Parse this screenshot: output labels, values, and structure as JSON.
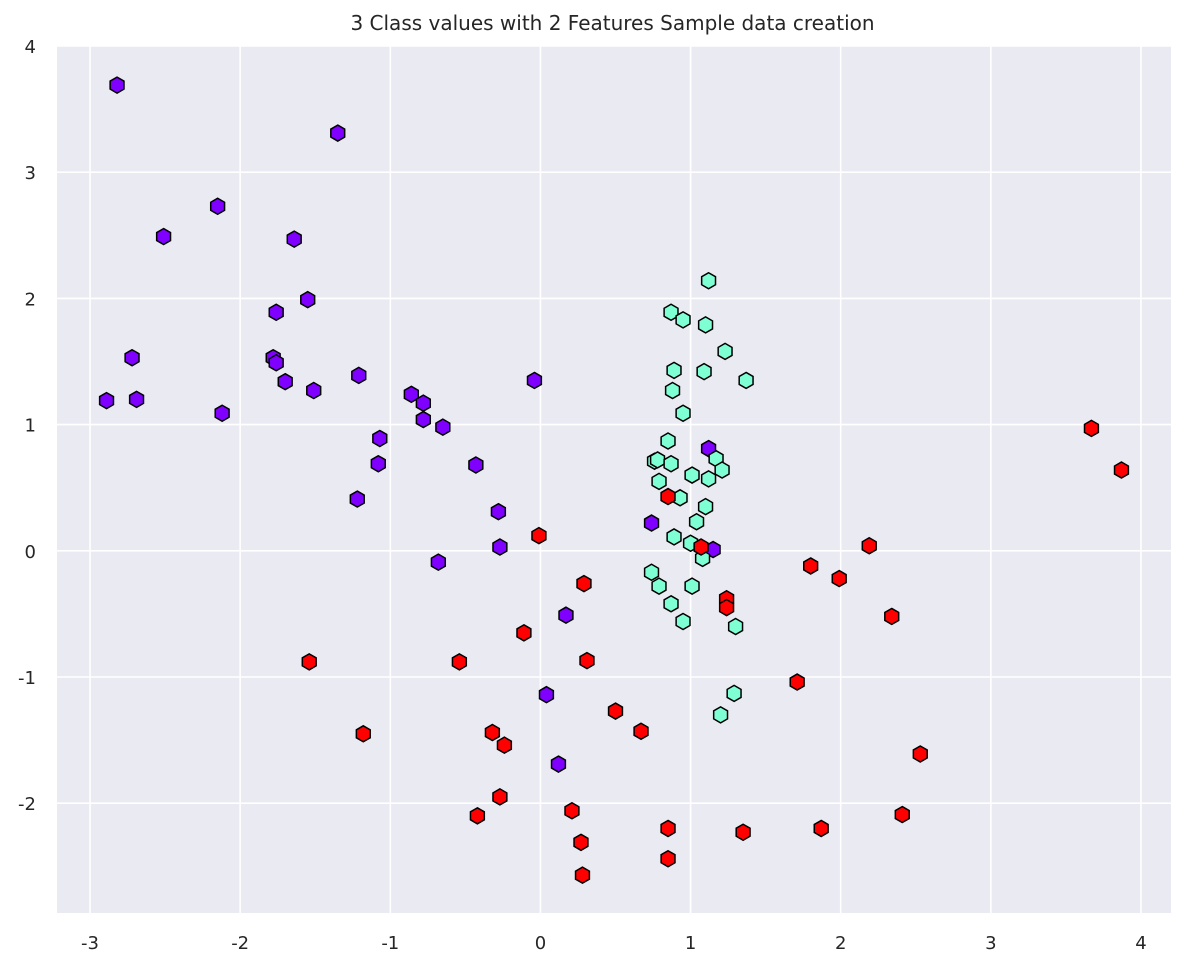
{
  "chart_data": {
    "type": "scatter",
    "title": "3 Class values with 2 Features Sample data creation",
    "xlabel": "",
    "ylabel": "",
    "xlim": [
      -3.22,
      4.2
    ],
    "ylim": [
      -2.87,
      4.0
    ],
    "xticks": [
      -3,
      -2,
      -1,
      0,
      1,
      2,
      3,
      4
    ],
    "yticks": [
      -2,
      -1,
      0,
      1,
      2,
      3,
      4
    ],
    "xtick_labels": [
      "-3",
      "-2",
      "-1",
      "0",
      "1",
      "2",
      "3",
      "4"
    ],
    "ytick_labels": [
      "-2",
      "-1",
      "0",
      "1",
      "2",
      "3",
      "4"
    ],
    "grid": true,
    "background": "#eaeaf2",
    "gridColor": "#ffffff",
    "marker": "hexagon",
    "markerEdgeColor": "#000000",
    "series": [
      {
        "color": "#7f00ff",
        "points": [
          [
            -2.82,
            3.69
          ],
          [
            -1.35,
            3.31
          ],
          [
            -2.15,
            2.73
          ],
          [
            -2.51,
            2.49
          ],
          [
            -1.64,
            2.47
          ],
          [
            -1.55,
            1.99
          ],
          [
            -1.76,
            1.89
          ],
          [
            -2.72,
            1.53
          ],
          [
            -1.78,
            1.53
          ],
          [
            -1.76,
            1.49
          ],
          [
            -1.21,
            1.39
          ],
          [
            -1.7,
            1.34
          ],
          [
            -1.51,
            1.27
          ],
          [
            -0.04,
            1.35
          ],
          [
            -0.86,
            1.24
          ],
          [
            -2.89,
            1.19
          ],
          [
            -2.69,
            1.2
          ],
          [
            -0.78,
            1.17
          ],
          [
            -2.12,
            1.09
          ],
          [
            -0.78,
            1.04
          ],
          [
            -0.65,
            0.98
          ],
          [
            -1.07,
            0.89
          ],
          [
            -1.08,
            0.69
          ],
          [
            -0.43,
            0.68
          ],
          [
            1.12,
            0.81
          ],
          [
            -1.22,
            0.41
          ],
          [
            -0.28,
            0.31
          ],
          [
            0.74,
            0.22
          ],
          [
            -0.27,
            0.03
          ],
          [
            1.15,
            0.01
          ],
          [
            -0.68,
            -0.09
          ],
          [
            0.17,
            -0.51
          ],
          [
            0.04,
            -1.14
          ],
          [
            0.12,
            -1.69
          ]
        ]
      },
      {
        "color": "#7fffd4",
        "points": [
          [
            1.12,
            2.14
          ],
          [
            0.87,
            1.89
          ],
          [
            0.95,
            1.83
          ],
          [
            1.1,
            1.79
          ],
          [
            1.23,
            1.58
          ],
          [
            0.89,
            1.43
          ],
          [
            1.09,
            1.42
          ],
          [
            1.37,
            1.35
          ],
          [
            0.88,
            1.27
          ],
          [
            0.95,
            1.09
          ],
          [
            0.85,
            0.87
          ],
          [
            1.17,
            0.73
          ],
          [
            0.76,
            0.71
          ],
          [
            0.78,
            0.72
          ],
          [
            0.87,
            0.69
          ],
          [
            1.21,
            0.64
          ],
          [
            1.01,
            0.6
          ],
          [
            1.12,
            0.57
          ],
          [
            0.79,
            0.55
          ],
          [
            0.93,
            0.42
          ],
          [
            1.1,
            0.35
          ],
          [
            1.04,
            0.23
          ],
          [
            0.89,
            0.11
          ],
          [
            1.0,
            0.06
          ],
          [
            1.08,
            -0.06
          ],
          [
            0.74,
            -0.17
          ],
          [
            0.79,
            -0.28
          ],
          [
            1.01,
            -0.28
          ],
          [
            0.87,
            -0.42
          ],
          [
            0.95,
            -0.56
          ],
          [
            1.3,
            -0.6
          ],
          [
            1.29,
            -1.13
          ],
          [
            1.2,
            -1.3
          ]
        ]
      },
      {
        "color": "#ff0000",
        "points": [
          [
            3.67,
            0.97
          ],
          [
            3.87,
            0.64
          ],
          [
            0.85,
            0.43
          ],
          [
            1.07,
            0.03
          ],
          [
            -0.01,
            0.12
          ],
          [
            2.19,
            0.04
          ],
          [
            1.8,
            -0.12
          ],
          [
            1.99,
            -0.22
          ],
          [
            0.29,
            -0.26
          ],
          [
            1.24,
            -0.38
          ],
          [
            1.24,
            -0.45
          ],
          [
            2.34,
            -0.52
          ],
          [
            -0.11,
            -0.65
          ],
          [
            -1.54,
            -0.88
          ],
          [
            -0.54,
            -0.88
          ],
          [
            0.31,
            -0.87
          ],
          [
            1.71,
            -1.04
          ],
          [
            0.5,
            -1.27
          ],
          [
            0.67,
            -1.43
          ],
          [
            -0.32,
            -1.44
          ],
          [
            -0.24,
            -1.54
          ],
          [
            -1.18,
            -1.45
          ],
          [
            2.53,
            -1.61
          ],
          [
            -0.27,
            -1.95
          ],
          [
            0.21,
            -2.06
          ],
          [
            2.41,
            -2.09
          ],
          [
            -0.42,
            -2.1
          ],
          [
            0.85,
            -2.2
          ],
          [
            1.87,
            -2.2
          ],
          [
            1.35,
            -2.23
          ],
          [
            0.27,
            -2.31
          ],
          [
            0.85,
            -2.44
          ],
          [
            0.28,
            -2.57
          ]
        ]
      }
    ]
  }
}
